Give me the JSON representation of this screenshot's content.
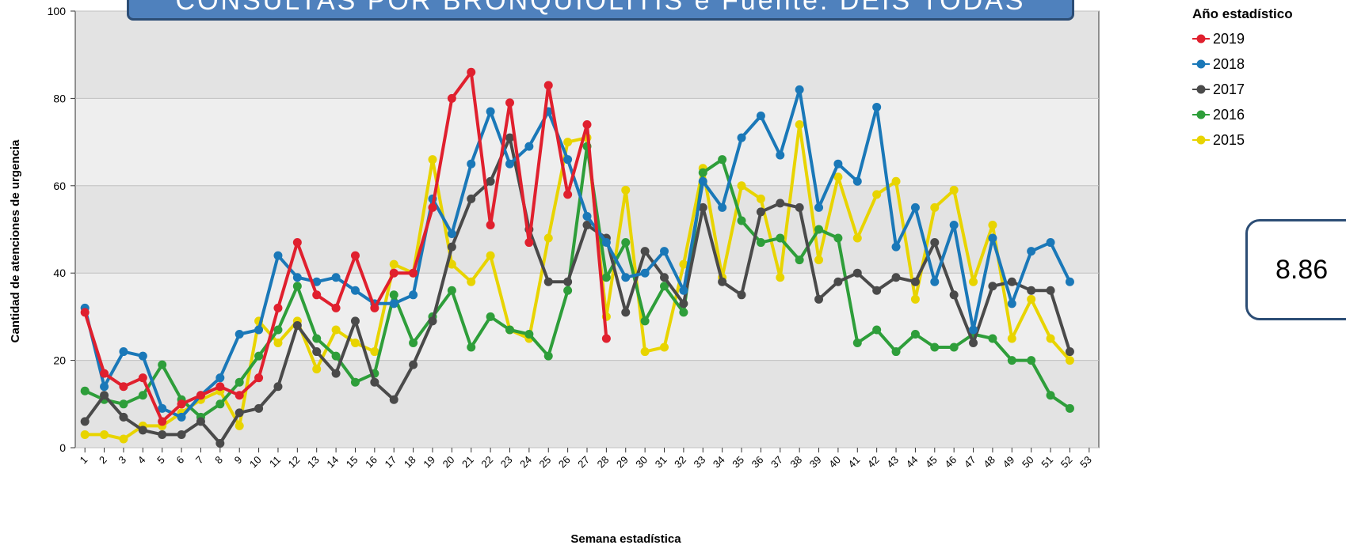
{
  "chart_data": {
    "type": "line",
    "title": "CONSULTAS POR BRONQUIOLITIS e  Fuente: DEIS  TODAS",
    "xlabel": "Semana estadística",
    "ylabel": "Cantidad de atenciones de urgencia",
    "xlim": [
      1,
      53
    ],
    "ylim": [
      0,
      100
    ],
    "y_ticks": [
      "0",
      "20",
      "40",
      "60",
      "80",
      "100"
    ],
    "x_ticks": [
      "1",
      "2",
      "3",
      "4",
      "5",
      "6",
      "7",
      "8",
      "9",
      "10",
      "11",
      "12",
      "13",
      "14",
      "15",
      "16",
      "17",
      "18",
      "19",
      "20",
      "21",
      "22",
      "23",
      "24",
      "25",
      "26",
      "27",
      "28",
      "29",
      "30",
      "31",
      "32",
      "33",
      "34",
      "35",
      "36",
      "37",
      "38",
      "39",
      "40",
      "41",
      "42",
      "43",
      "44",
      "45",
      "46",
      "47",
      "48",
      "49",
      "50",
      "51",
      "52",
      "53"
    ],
    "grid": true,
    "legend_title": "Año estadístico",
    "legend_position": "top-right",
    "series": [
      {
        "name": "2019",
        "color": "#e0202e",
        "values": [
          31,
          17,
          14,
          16,
          6,
          10,
          12,
          14,
          12,
          16,
          32,
          47,
          35,
          32,
          44,
          32,
          40,
          40,
          55,
          80,
          86,
          51,
          79,
          47,
          83,
          58,
          74,
          25
        ]
      },
      {
        "name": "2018",
        "color": "#1a78b8",
        "values": [
          32,
          14,
          22,
          21,
          9,
          7,
          12,
          16,
          26,
          27,
          44,
          39,
          38,
          39,
          36,
          33,
          33,
          35,
          57,
          49,
          65,
          77,
          65,
          69,
          77,
          66,
          53,
          47,
          39,
          40,
          45,
          36,
          61,
          55,
          71,
          76,
          67,
          82,
          55,
          65,
          61,
          78,
          46,
          55,
          38,
          51,
          27,
          48,
          33,
          45,
          47,
          38
        ]
      },
      {
        "name": "2017",
        "color": "#4a4a4a",
        "values": [
          6,
          12,
          7,
          4,
          3,
          3,
          6,
          1,
          8,
          9,
          14,
          28,
          22,
          17,
          29,
          15,
          11,
          19,
          29,
          46,
          57,
          61,
          71,
          50,
          38,
          38,
          51,
          48,
          31,
          45,
          39,
          33,
          55,
          38,
          35,
          54,
          56,
          55,
          34,
          38,
          40,
          36,
          39,
          38,
          47,
          35,
          24,
          37,
          38,
          36,
          36,
          22
        ]
      },
      {
        "name": "2016",
        "color": "#2e9e3a",
        "values": [
          13,
          11,
          10,
          12,
          19,
          11,
          7,
          10,
          15,
          21,
          27,
          37,
          25,
          21,
          15,
          17,
          35,
          24,
          30,
          36,
          23,
          30,
          27,
          26,
          21,
          36,
          69,
          39,
          47,
          29,
          37,
          31,
          63,
          66,
          52,
          47,
          48,
          43,
          50,
          48,
          24,
          27,
          22,
          26,
          23,
          23,
          26,
          25,
          20,
          20,
          12,
          9
        ]
      },
      {
        "name": "2015",
        "color": "#e8d400",
        "values": [
          3,
          3,
          2,
          5,
          5,
          8,
          11,
          13,
          5,
          29,
          24,
          29,
          18,
          27,
          24,
          22,
          42,
          40,
          66,
          42,
          38,
          44,
          27,
          25,
          48,
          70,
          71,
          30,
          59,
          22,
          23,
          42,
          64,
          39,
          60,
          57,
          39,
          74,
          43,
          62,
          48,
          58,
          61,
          34,
          55,
          59,
          38,
          51,
          25,
          34,
          25,
          20
        ]
      }
    ]
  },
  "side_box": {
    "value": "8.86"
  }
}
